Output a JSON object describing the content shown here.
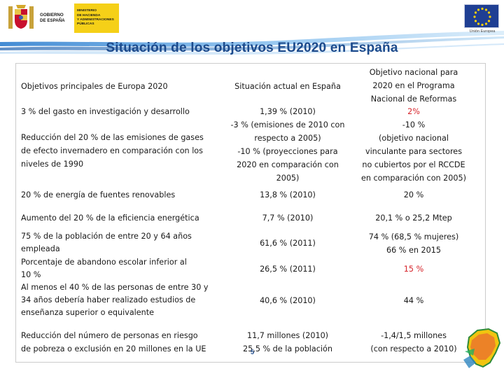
{
  "colors": {
    "title": "#1c4a8c",
    "highlight": "#d6232a",
    "ribbon": "#3d8fd6",
    "ministry_yellow": "#f5d018",
    "eu_blue": "#1f3f93",
    "eu_star": "#ffd200"
  },
  "header": {
    "gov_lines": [
      "GOBIERNO",
      "DE ESPAÑA"
    ],
    "ministry_lines": [
      "MINISTERIO",
      "DE HACIENDA",
      "Y ADMINISTRACIONES",
      "PÚBLICAS"
    ],
    "eu_caption": "Unión Europea",
    "crest_icon": "spain-coat-of-arms-icon",
    "flag_icon": "eu-flag-icon"
  },
  "title": "Situación de los objetivos EU2020 en España",
  "table": {
    "headers": {
      "col1": "Objetivos principales de Europa 2020",
      "col2": "Situación actual en España",
      "col3": [
        "Objetivo nacional para",
        "2020 en el Programa",
        "Nacional de Reformas"
      ]
    },
    "rows": [
      {
        "col1": [
          "3 % del gasto en investigación y desarrollo"
        ],
        "col2": [
          "1,39 % (2010)"
        ],
        "col3": [
          "2%"
        ]
      },
      {
        "col1": [
          "Reducción del 20 % de las emisiones de gases",
          "de efecto invernadero en comparación con los",
          "niveles de 1990"
        ],
        "col2": [
          "-3 % (emisiones de 2010 con",
          "respecto a 2005)",
          "-10 % (proyecciones para",
          "2020 en comparación con",
          "2005)"
        ],
        "col3": [
          "-10 %",
          "(objetivo nacional",
          "vinculante para sectores",
          "no cubiertos por el RCCDE",
          "en comparación con 2005)"
        ]
      },
      {
        "col1": [
          "20 % de energía de fuentes renovables"
        ],
        "col2": [
          "13,8 % (2010)"
        ],
        "col3": [
          "20 %"
        ]
      },
      {
        "col1": [
          "Aumento del 20 % de la eficiencia energética"
        ],
        "col2": [
          "7,7 % (2010)"
        ],
        "col3": [
          "20,1 % o 25,2 Mtep"
        ]
      },
      {
        "col1": [
          "75 % de la población de entre 20 y 64 años",
          "empleada"
        ],
        "col2": [
          "61,6 % (2011)"
        ],
        "col3": [
          "74 % (68,5 % mujeres)",
          "66 % en 2015"
        ]
      },
      {
        "col1": [
          "Porcentaje de abandono escolar inferior al",
          "10 %"
        ],
        "col2": [
          "26,5 % (2011)"
        ],
        "col3": [
          "15 %"
        ]
      },
      {
        "col1": [
          "Al menos el 40 % de las personas de entre 30 y",
          "34 años debería haber realizado estudios de",
          "enseñanza superior o equivalente"
        ],
        "col2": [
          "40,6 % (2010)"
        ],
        "col3": [
          "44 %"
        ]
      },
      {
        "col1": [
          "Reducción del número de personas en riesgo",
          "de pobreza o exclusión en 20 millones en la UE"
        ],
        "col2": [
          "11,7 millones (2010)",
          "25,5 % de la población"
        ],
        "col3": [
          "-1,4/1,5 millones",
          "(con respecto a 2010)"
        ]
      }
    ]
  },
  "page_number": "5",
  "corner_logo_icon": "spain-map-icon"
}
